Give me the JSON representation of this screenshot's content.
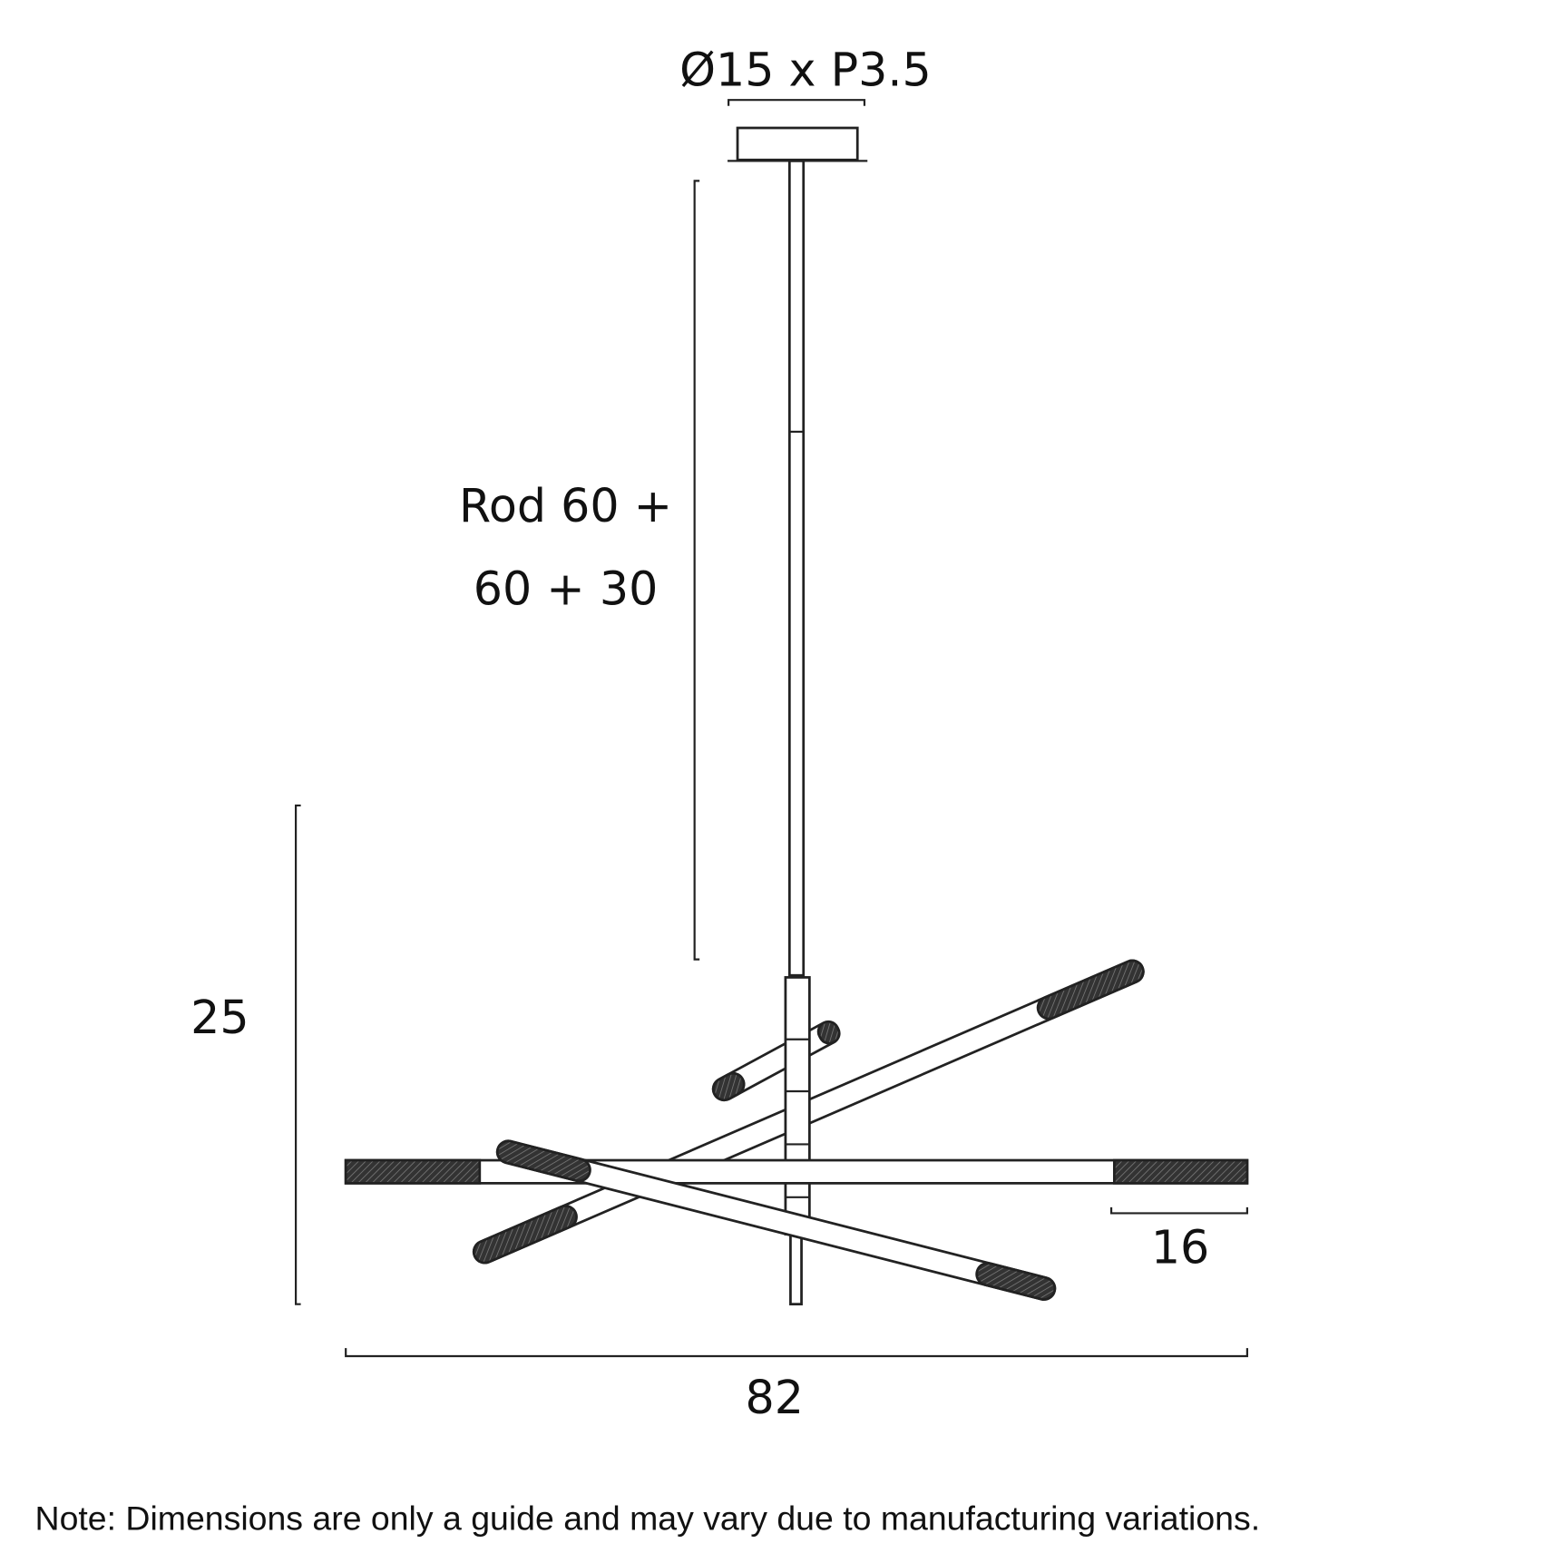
{
  "dimensions": {
    "canopy": "Ø15 x P3.5",
    "rod_line1": "Rod 60 +",
    "rod_line2": "60 + 30",
    "height": "25",
    "tube_end": "16",
    "width": "82"
  },
  "note": "Note: Dimensions are only a guide and may vary due to manufacturing variations."
}
